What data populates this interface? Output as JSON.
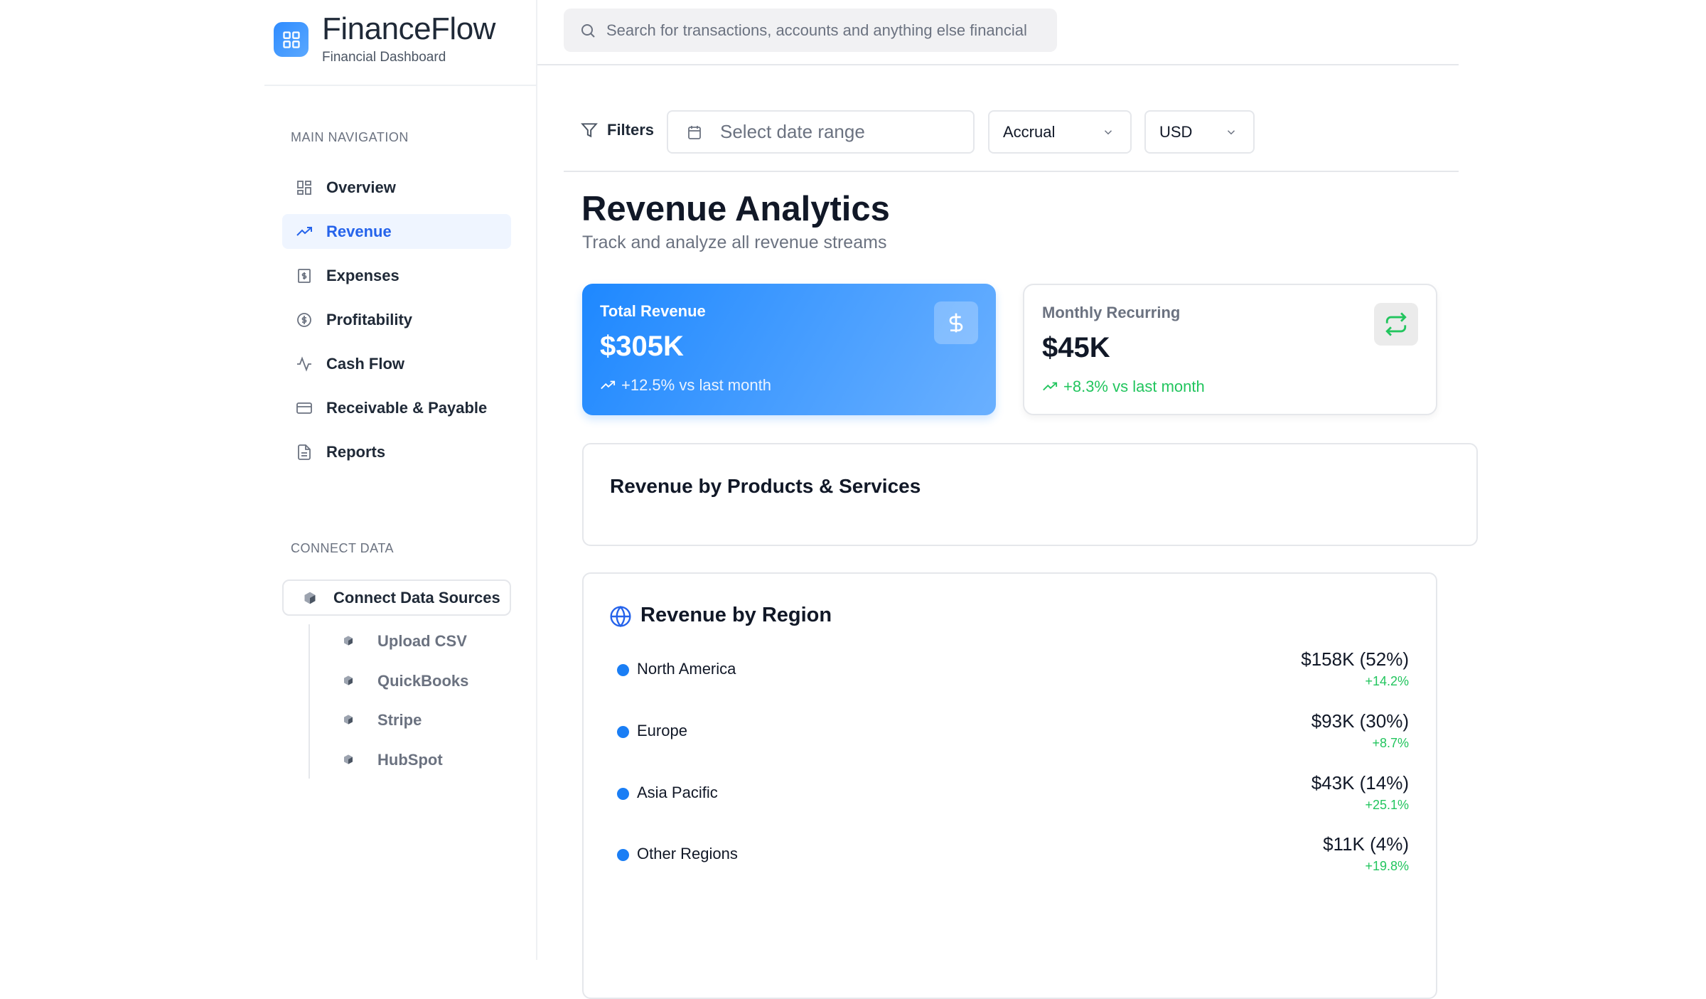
{
  "brand": {
    "name": "FinanceFlow",
    "subtitle": "Financial Dashboard",
    "icon": "grid-icon"
  },
  "sidebar": {
    "main_label": "MAIN NAVIGATION",
    "items": [
      {
        "label": "Overview",
        "icon": "grid-icon"
      },
      {
        "label": "Revenue",
        "icon": "trending-up-icon",
        "active": true
      },
      {
        "label": "Expenses",
        "icon": "receipt-icon"
      },
      {
        "label": "Profitability",
        "icon": "dollar-circle-icon"
      },
      {
        "label": "Cash Flow",
        "icon": "activity-icon"
      },
      {
        "label": "Receivable & Payable",
        "icon": "credit-card-icon"
      },
      {
        "label": "Reports",
        "icon": "file-text-icon"
      }
    ],
    "connect_label": "CONNECT DATA",
    "connect_button": "Connect Data Sources",
    "sources": [
      {
        "label": "Upload CSV"
      },
      {
        "label": "QuickBooks"
      },
      {
        "label": "Stripe"
      },
      {
        "label": "HubSpot"
      }
    ]
  },
  "search": {
    "placeholder": "Search for transactions, accounts and anything else financial"
  },
  "filters": {
    "label": "Filters",
    "date_placeholder": "Select date range",
    "basis": "Accrual",
    "currency": "USD"
  },
  "page": {
    "title": "Revenue Analytics",
    "subtitle": "Track and analyze all revenue streams"
  },
  "kpis": [
    {
      "label": "Total Revenue",
      "value": "$305K",
      "change": "+12.5% vs last month",
      "icon": "dollar-icon"
    },
    {
      "label": "Monthly Recurring",
      "value": "$45K",
      "change": "+8.3% vs last month",
      "icon": "repeat-icon"
    }
  ],
  "products": {
    "title": "Revenue by Products & Services"
  },
  "regions": {
    "title": "Revenue by Region",
    "items": [
      {
        "name": "North America",
        "value": "$158K (52%)",
        "change": "+14.2%"
      },
      {
        "name": "Europe",
        "value": "$93K (30%)",
        "change": "+8.7%"
      },
      {
        "name": "Asia Pacific",
        "value": "$43K (14%)",
        "change": "+25.1%"
      },
      {
        "name": "Other Regions",
        "value": "$11K (4%)",
        "change": "+19.8%"
      }
    ]
  },
  "colors": {
    "accent": "#2563eb",
    "card_gradient_start": "#1e88ff",
    "card_gradient_end": "#6ab0ff",
    "positive": "#22c55e",
    "region_dot": "#1a7ef5"
  }
}
